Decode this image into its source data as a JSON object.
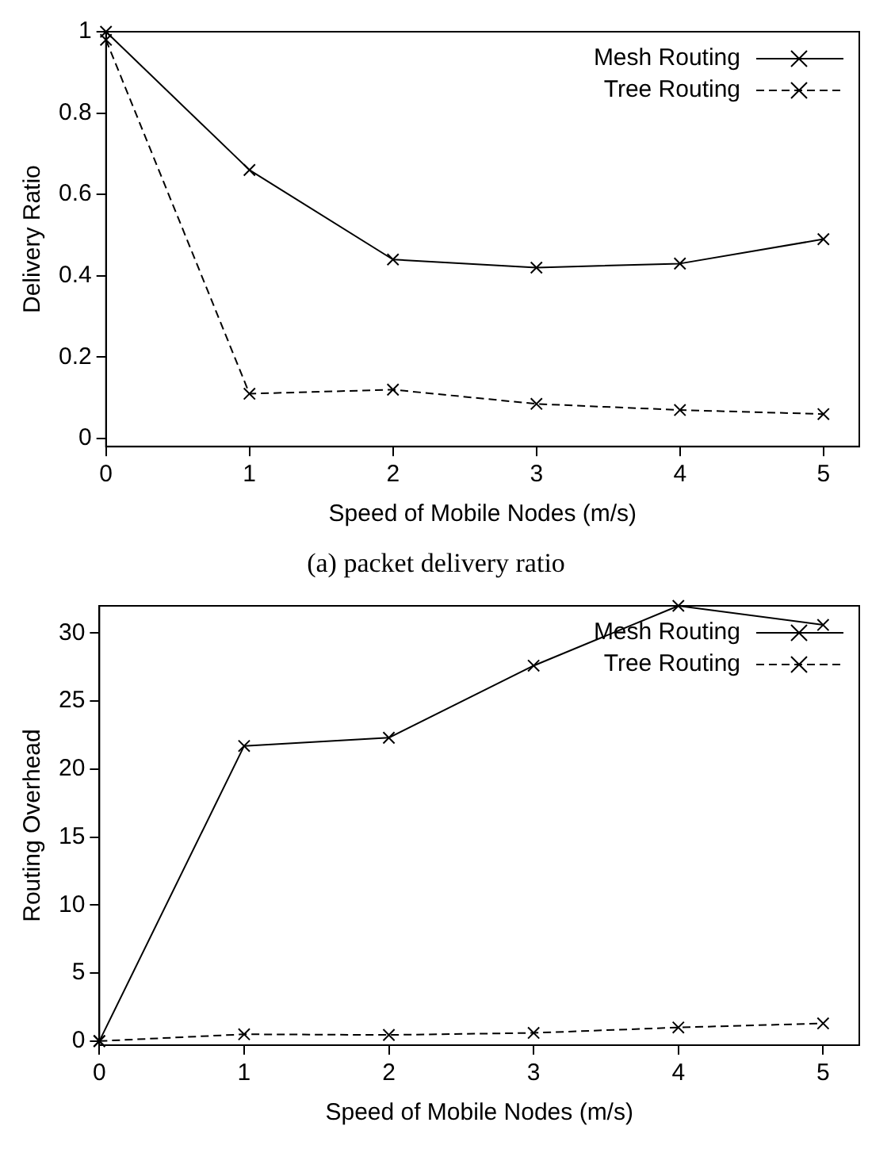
{
  "chart_data": [
    {
      "type": "line",
      "title": "(a) packet delivery ratio",
      "xlabel": "Speed of Mobile Nodes (m/s)",
      "ylabel": "Delivery Ratio",
      "x": [
        0,
        1,
        2,
        3,
        4,
        5
      ],
      "series": [
        {
          "name": "Mesh Routing",
          "color": "#000000",
          "values": [
            1.0,
            0.66,
            0.44,
            0.42,
            0.43,
            0.49
          ],
          "line_style": "solid",
          "marker": "cross"
        },
        {
          "name": "Tree Routing",
          "color": "#000000",
          "values": [
            0.98,
            0.11,
            0.12,
            0.085,
            0.07,
            0.06
          ],
          "line_style": "dashed",
          "marker": "cross"
        }
      ],
      "xlim": [
        0,
        5.25
      ],
      "xticks": [
        0,
        1,
        2,
        3,
        4,
        5
      ],
      "ylim": [
        -0.02,
        1
      ],
      "yticks": [
        0,
        0.2,
        0.4,
        0.6,
        0.8,
        1
      ],
      "grid": false,
      "legend": "top right"
    },
    {
      "type": "line",
      "xlabel": "Speed of Mobile Nodes (m/s)",
      "ylabel": "Routing Overhead",
      "x": [
        0,
        1,
        2,
        3,
        4,
        5
      ],
      "series": [
        {
          "name": "Mesh Routing",
          "color": "#000000",
          "values": [
            0,
            21.7,
            22.3,
            27.6,
            32,
            30.6
          ],
          "line_style": "solid",
          "marker": "cross"
        },
        {
          "name": "Tree Routing",
          "color": "#000000",
          "values": [
            0,
            0.5,
            0.45,
            0.6,
            1.0,
            1.3
          ],
          "line_style": "dashed",
          "marker": "cross"
        }
      ],
      "xlim": [
        0,
        5.25
      ],
      "xticks": [
        0,
        1,
        2,
        3,
        4,
        5
      ],
      "ylim": [
        -0.3,
        32
      ],
      "yticks": [
        0,
        5,
        10,
        15,
        20,
        25,
        30
      ],
      "grid": false,
      "legend": "top right"
    }
  ]
}
